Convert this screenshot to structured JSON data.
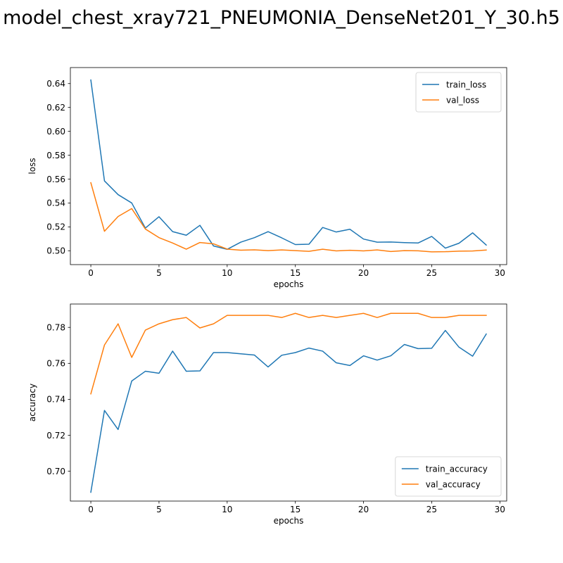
{
  "title": "model_chest_xray721_PNEUMONIA_DenseNet201_Y_30.h5",
  "colors": {
    "train": "#1f77b4",
    "val": "#ff7f0e"
  },
  "chart_data": [
    {
      "type": "line",
      "xlabel": "epochs",
      "ylabel": "loss",
      "xlim": [
        -1.5,
        30.5
      ],
      "ylim": [
        0.4884,
        0.6534
      ],
      "xticks": [
        0,
        5,
        10,
        15,
        20,
        25,
        30
      ],
      "xtick_labels": [
        "0",
        "5",
        "10",
        "15",
        "20",
        "25",
        "30"
      ],
      "yticks": [
        0.5,
        0.52,
        0.54,
        0.56,
        0.58,
        0.6,
        0.62,
        0.64
      ],
      "ytick_labels": [
        "0.50",
        "0.52",
        "0.54",
        "0.56",
        "0.58",
        "0.60",
        "0.62",
        "0.64"
      ],
      "legend": "top-right",
      "grid": false,
      "x": [
        0,
        1,
        2,
        3,
        4,
        5,
        6,
        7,
        8,
        9,
        10,
        11,
        12,
        13,
        14,
        15,
        16,
        17,
        18,
        19,
        20,
        21,
        22,
        23,
        24,
        25,
        26,
        27,
        28,
        29
      ],
      "series": [
        {
          "name": "train_loss",
          "color_key": "train",
          "values": [
            0.643,
            0.5585,
            0.547,
            0.54,
            0.519,
            0.5285,
            0.516,
            0.513,
            0.5213,
            0.504,
            0.5012,
            0.5072,
            0.511,
            0.516,
            0.5108,
            0.5052,
            0.5055,
            0.5195,
            0.5157,
            0.518,
            0.5098,
            0.5072,
            0.5073,
            0.5068,
            0.5065,
            0.512,
            0.5022,
            0.5063,
            0.515,
            0.5048
          ]
        },
        {
          "name": "val_loss",
          "color_key": "val",
          "values": [
            0.557,
            0.5163,
            0.5287,
            0.5353,
            0.5182,
            0.511,
            0.5065,
            0.5013,
            0.5069,
            0.5058,
            0.5014,
            0.5005,
            0.5008,
            0.5001,
            0.5007,
            0.5001,
            0.4995,
            0.5013,
            0.4999,
            0.5004,
            0.4999,
            0.5007,
            0.4994,
            0.5001,
            0.5,
            0.4991,
            0.4992,
            0.4997,
            0.4998,
            0.5006
          ]
        }
      ]
    },
    {
      "type": "line",
      "xlabel": "epochs",
      "ylabel": "accuracy",
      "xlim": [
        -1.5,
        30.5
      ],
      "ylim": [
        0.6834,
        0.793
      ],
      "xticks": [
        0,
        5,
        10,
        15,
        20,
        25,
        30
      ],
      "xtick_labels": [
        "0",
        "5",
        "10",
        "15",
        "20",
        "25",
        "30"
      ],
      "yticks": [
        0.7,
        0.72,
        0.74,
        0.76,
        0.78
      ],
      "ytick_labels": [
        "0.70",
        "0.72",
        "0.74",
        "0.76",
        "0.78"
      ],
      "legend": "bottom-right",
      "grid": false,
      "x": [
        0,
        1,
        2,
        3,
        4,
        5,
        6,
        7,
        8,
        9,
        10,
        11,
        12,
        13,
        14,
        15,
        16,
        17,
        18,
        19,
        20,
        21,
        22,
        23,
        24,
        25,
        26,
        27,
        28,
        29
      ],
      "series": [
        {
          "name": "train_accuracy",
          "color_key": "train",
          "values": [
            0.6883,
            0.7338,
            0.7232,
            0.7502,
            0.7556,
            0.7545,
            0.7668,
            0.7556,
            0.7558,
            0.766,
            0.766,
            0.7653,
            0.7646,
            0.758,
            0.7645,
            0.766,
            0.7685,
            0.7668,
            0.7603,
            0.7588,
            0.7642,
            0.7618,
            0.7642,
            0.7705,
            0.7682,
            0.7684,
            0.7783,
            0.769,
            0.764,
            0.7763
          ]
        },
        {
          "name": "val_accuracy",
          "color_key": "val",
          "values": [
            0.743,
            0.7702,
            0.782,
            0.7633,
            0.7785,
            0.782,
            0.7843,
            0.7855,
            0.7797,
            0.782,
            0.7867,
            0.7867,
            0.7867,
            0.7867,
            0.7855,
            0.7878,
            0.7855,
            0.7867,
            0.7855,
            0.7867,
            0.7878,
            0.7855,
            0.7878,
            0.7878,
            0.7878,
            0.7855,
            0.7855,
            0.7867,
            0.7867,
            0.7867
          ]
        }
      ]
    }
  ]
}
